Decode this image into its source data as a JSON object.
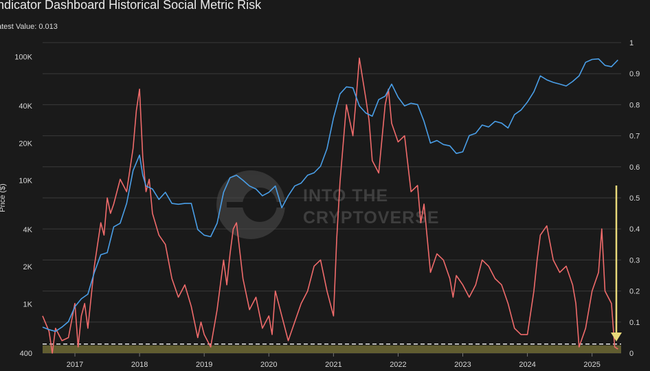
{
  "header": {
    "title": "ndicator Dashboard Historical Social Metric Risk",
    "latest_label": "atest Value: 0.013"
  },
  "watermark": {
    "line1": "INTO THE",
    "line2": "CRYPTOVERSE"
  },
  "chart_data": {
    "type": "line",
    "title": "ndicator Dashboard Historical Social Metric Risk",
    "subtitle": "atest Value: 0.013",
    "ylabel": "Price ($)",
    "x_ticks": [
      "2017",
      "2018",
      "2019",
      "2020",
      "2021",
      "2022",
      "2023",
      "2024",
      "2025"
    ],
    "x_range": [
      2016.5,
      2025.45
    ],
    "y_left": {
      "scale": "log",
      "range": [
        400,
        130000
      ],
      "ticks": [
        "400",
        "1K",
        "2K",
        "4K",
        "10K",
        "20K",
        "40K",
        "100K"
      ]
    },
    "y_right": {
      "range": [
        0,
        1
      ],
      "ticks": [
        "0",
        "0.1",
        "0.2",
        "0.3",
        "0.4",
        "0.5",
        "0.6",
        "0.7",
        "0.8",
        "0.9",
        "1"
      ]
    },
    "grid": true,
    "colors": {
      "price": "#4a9fe8",
      "risk": "#f06b6b",
      "arrow": "#e8d97a",
      "band": "#6e6a35"
    },
    "low_risk_band": [
      0,
      0.025
    ],
    "series": [
      {
        "axis": "left",
        "x": [
          2016.5,
          2016.6,
          2016.7,
          2016.8,
          2016.9,
          2017.0,
          2017.1,
          2017.2,
          2017.3,
          2017.4,
          2017.5,
          2017.6,
          2017.7,
          2017.8,
          2017.9,
          2018.0,
          2018.05,
          2018.1,
          2018.2,
          2018.3,
          2018.4,
          2018.5,
          2018.6,
          2018.7,
          2018.8,
          2018.9,
          2019.0,
          2019.1,
          2019.2,
          2019.3,
          2019.4,
          2019.5,
          2019.6,
          2019.7,
          2019.8,
          2019.9,
          2020.0,
          2020.1,
          2020.2,
          2020.3,
          2020.4,
          2020.5,
          2020.6,
          2020.7,
          2020.8,
          2020.9,
          2021.0,
          2021.1,
          2021.2,
          2021.3,
          2021.4,
          2021.5,
          2021.6,
          2021.7,
          2021.8,
          2021.9,
          2022.0,
          2022.1,
          2022.2,
          2022.3,
          2022.4,
          2022.5,
          2022.6,
          2022.7,
          2022.8,
          2022.9,
          2023.0,
          2023.1,
          2023.2,
          2023.3,
          2023.4,
          2023.5,
          2023.6,
          2023.7,
          2023.8,
          2023.9,
          2024.0,
          2024.1,
          2024.2,
          2024.3,
          2024.4,
          2024.5,
          2024.6,
          2024.7,
          2024.8,
          2024.9,
          2025.0,
          2025.1,
          2025.2,
          2025.3,
          2025.4
        ],
        "y": [
          650,
          620,
          600,
          650,
          720,
          950,
          1100,
          1200,
          1800,
          2500,
          2600,
          4200,
          4500,
          6500,
          12000,
          16000,
          11000,
          9000,
          8500,
          7000,
          8000,
          6500,
          6400,
          6500,
          6500,
          4000,
          3600,
          3500,
          4500,
          8000,
          10500,
          11000,
          10000,
          9000,
          8500,
          7500,
          8000,
          9000,
          6000,
          7500,
          9000,
          9500,
          11000,
          11500,
          13000,
          18000,
          32000,
          50000,
          57000,
          56000,
          40000,
          35000,
          33000,
          45000,
          48000,
          60000,
          47000,
          40000,
          42000,
          41000,
          30000,
          20000,
          21000,
          19500,
          19000,
          16500,
          17000,
          23000,
          24000,
          28000,
          27000,
          30000,
          29000,
          26500,
          34000,
          37000,
          43000,
          52000,
          70000,
          65000,
          62000,
          60000,
          58000,
          63000,
          70000,
          90000,
          95000,
          96000,
          85000,
          83000,
          94000
        ]
      },
      {
        "axis": "right",
        "x": [
          2016.5,
          2016.6,
          2016.65,
          2016.7,
          2016.75,
          2016.8,
          2016.9,
          2017.0,
          2017.05,
          2017.1,
          2017.15,
          2017.2,
          2017.3,
          2017.4,
          2017.45,
          2017.5,
          2017.55,
          2017.6,
          2017.7,
          2017.8,
          2017.9,
          2017.95,
          2018.0,
          2018.05,
          2018.1,
          2018.15,
          2018.2,
          2018.3,
          2018.4,
          2018.5,
          2018.6,
          2018.7,
          2018.8,
          2018.9,
          2018.95,
          2019.0,
          2019.1,
          2019.2,
          2019.3,
          2019.35,
          2019.4,
          2019.45,
          2019.5,
          2019.6,
          2019.7,
          2019.8,
          2019.9,
          2020.0,
          2020.05,
          2020.1,
          2020.2,
          2020.3,
          2020.4,
          2020.5,
          2020.6,
          2020.7,
          2020.8,
          2020.9,
          2021.0,
          2021.05,
          2021.1,
          2021.2,
          2021.3,
          2021.35,
          2021.4,
          2021.5,
          2021.55,
          2021.6,
          2021.7,
          2021.8,
          2021.85,
          2021.9,
          2022.0,
          2022.1,
          2022.2,
          2022.3,
          2022.35,
          2022.4,
          2022.5,
          2022.6,
          2022.7,
          2022.8,
          2022.85,
          2022.9,
          2023.0,
          2023.1,
          2023.2,
          2023.3,
          2023.4,
          2023.5,
          2023.6,
          2023.7,
          2023.75,
          2023.8,
          2023.9,
          2024.0,
          2024.1,
          2024.15,
          2024.2,
          2024.3,
          2024.4,
          2024.5,
          2024.6,
          2024.7,
          2024.75,
          2024.8,
          2024.9,
          2025.0,
          2025.1,
          2025.15,
          2025.2,
          2025.3,
          2025.35,
          2025.4
        ],
        "y": [
          0.12,
          0.07,
          0.0,
          0.08,
          0.06,
          0.04,
          0.05,
          0.16,
          0.02,
          0.12,
          0.16,
          0.08,
          0.28,
          0.42,
          0.38,
          0.5,
          0.45,
          0.48,
          0.56,
          0.52,
          0.66,
          0.78,
          0.85,
          0.63,
          0.52,
          0.56,
          0.45,
          0.38,
          0.35,
          0.24,
          0.18,
          0.22,
          0.15,
          0.05,
          0.1,
          0.06,
          0.02,
          0.14,
          0.3,
          0.22,
          0.32,
          0.4,
          0.42,
          0.24,
          0.14,
          0.18,
          0.08,
          0.12,
          0.06,
          0.2,
          0.12,
          0.04,
          0.1,
          0.16,
          0.2,
          0.28,
          0.3,
          0.2,
          0.12,
          0.37,
          0.55,
          0.8,
          0.7,
          0.82,
          0.95,
          0.82,
          0.75,
          0.62,
          0.58,
          0.8,
          0.85,
          0.74,
          0.68,
          0.7,
          0.52,
          0.54,
          0.42,
          0.48,
          0.26,
          0.32,
          0.3,
          0.24,
          0.18,
          0.25,
          0.22,
          0.18,
          0.22,
          0.3,
          0.28,
          0.24,
          0.22,
          0.16,
          0.12,
          0.08,
          0.06,
          0.06,
          0.2,
          0.3,
          0.38,
          0.41,
          0.3,
          0.26,
          0.28,
          0.22,
          0.16,
          0.02,
          0.08,
          0.2,
          0.26,
          0.4,
          0.2,
          0.16,
          0.02,
          0.013
        ]
      }
    ]
  }
}
